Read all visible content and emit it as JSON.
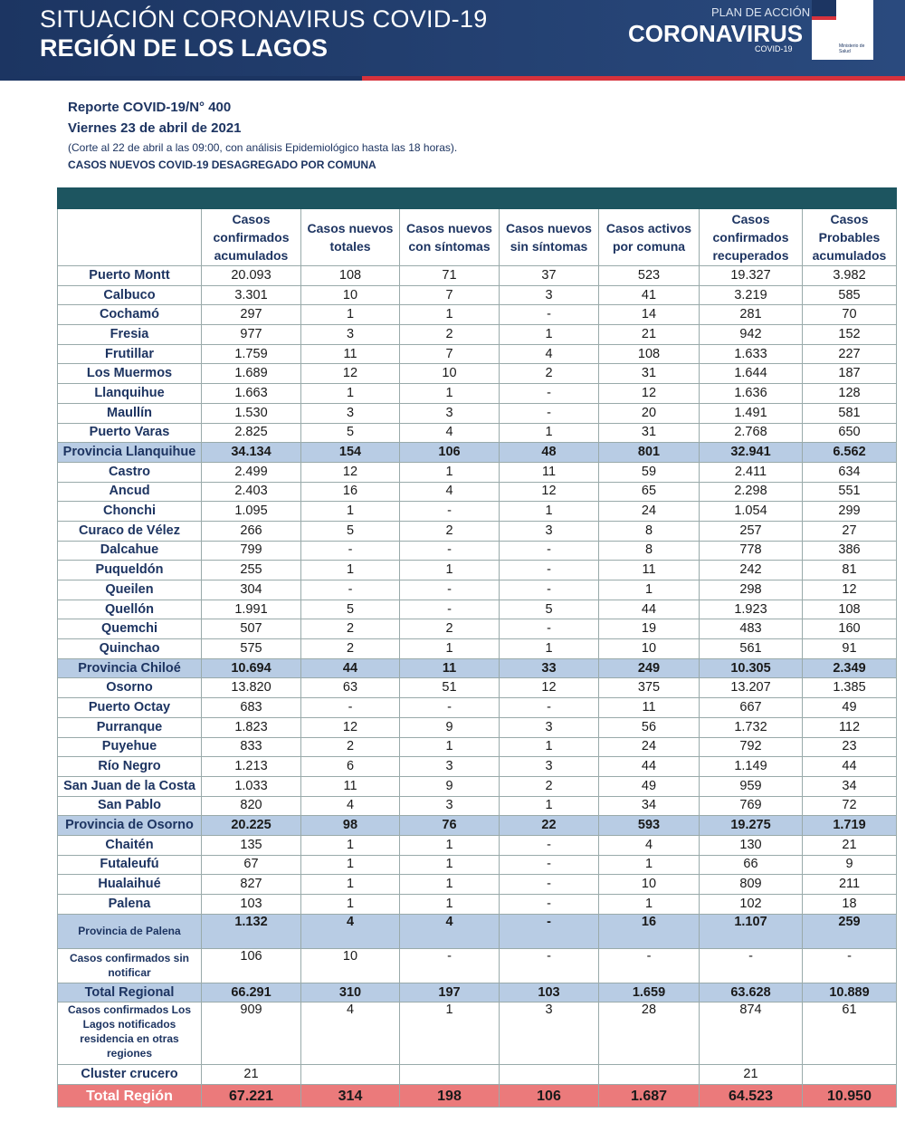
{
  "header": {
    "title": "SITUACIÓN CORONAVIRUS COVID-19",
    "subtitle": "REGIÓN DE LOS LAGOS",
    "logo_top": "PLAN DE ACCIÓN",
    "logo_main": "CORONAVIRUS",
    "logo_sub": "COVID-19",
    "gov_label": "Ministerio de Salud"
  },
  "report": {
    "number": "Reporte COVID-19/N° 400",
    "date": "Viernes 23 de abril de 2021",
    "note": "(Corte al 22 de abril a las 09:00, con análisis Epidemiológico hasta las 18 horas).",
    "heading": "CASOS NUEVOS COVID-19 DESAGREGADO POR COMUNA"
  },
  "table": {
    "columns": [
      null,
      "Casos confirmados acumulados",
      "Casos nuevos totales",
      "Casos nuevos con síntomas",
      "Casos nuevos sin síntomas",
      "Casos activos por comuna",
      "Casos confirmados recuperados",
      "Casos Probables acumulados"
    ],
    "rows": [
      [
        "Puerto Montt",
        "20.093",
        "108",
        "71",
        "37",
        "523",
        "19.327",
        "3.982"
      ],
      [
        "Calbuco",
        "3.301",
        "10",
        "7",
        "3",
        "41",
        "3.219",
        "585"
      ],
      [
        "Cochamó",
        "297",
        "1",
        "1",
        "-",
        "14",
        "281",
        "70"
      ],
      [
        "Fresia",
        "977",
        "3",
        "2",
        "1",
        "21",
        "942",
        "152"
      ],
      [
        "Frutillar",
        "1.759",
        "11",
        "7",
        "4",
        "108",
        "1.633",
        "227"
      ],
      [
        "Los Muermos",
        "1.689",
        "12",
        "10",
        "2",
        "31",
        "1.644",
        "187"
      ],
      [
        "Llanquihue",
        "1.663",
        "1",
        "1",
        "-",
        "12",
        "1.636",
        "128"
      ],
      [
        "Maullín",
        "1.530",
        "3",
        "3",
        "-",
        "20",
        "1.491",
        "581"
      ],
      [
        "Puerto Varas",
        "2.825",
        "5",
        "4",
        "1",
        "31",
        "2.768",
        "650"
      ],
      [
        "Provincia Llanquihue",
        "34.134",
        "154",
        "106",
        "48",
        "801",
        "32.941",
        "6.562"
      ],
      [
        "Castro",
        "2.499",
        "12",
        "1",
        "11",
        "59",
        "2.411",
        "634"
      ],
      [
        "Ancud",
        "2.403",
        "16",
        "4",
        "12",
        "65",
        "2.298",
        "551"
      ],
      [
        "Chonchi",
        "1.095",
        "1",
        "-",
        "1",
        "24",
        "1.054",
        "299"
      ],
      [
        "Curaco de Vélez",
        "266",
        "5",
        "2",
        "3",
        "8",
        "257",
        "27"
      ],
      [
        "Dalcahue",
        "799",
        "-",
        "-",
        "-",
        "8",
        "778",
        "386"
      ],
      [
        "Puqueldón",
        "255",
        "1",
        "1",
        "-",
        "11",
        "242",
        "81"
      ],
      [
        "Queilen",
        "304",
        "-",
        "-",
        "-",
        "1",
        "298",
        "12"
      ],
      [
        "Quellón",
        "1.991",
        "5",
        "-",
        "5",
        "44",
        "1.923",
        "108"
      ],
      [
        "Quemchi",
        "507",
        "2",
        "2",
        "-",
        "19",
        "483",
        "160"
      ],
      [
        "Quinchao",
        "575",
        "2",
        "1",
        "1",
        "10",
        "561",
        "91"
      ],
      [
        "Provincia Chiloé",
        "10.694",
        "44",
        "11",
        "33",
        "249",
        "10.305",
        "2.349"
      ],
      [
        "Osorno",
        "13.820",
        "63",
        "51",
        "12",
        "375",
        "13.207",
        "1.385"
      ],
      [
        "Puerto Octay",
        "683",
        "-",
        "-",
        "-",
        "11",
        "667",
        "49"
      ],
      [
        "Purranque",
        "1.823",
        "12",
        "9",
        "3",
        "56",
        "1.732",
        "112"
      ],
      [
        "Puyehue",
        "833",
        "2",
        "1",
        "1",
        "24",
        "792",
        "23"
      ],
      [
        "Río Negro",
        "1.213",
        "6",
        "3",
        "3",
        "44",
        "1.149",
        "44"
      ],
      [
        "San Juan de la Costa",
        "1.033",
        "11",
        "9",
        "2",
        "49",
        "959",
        "34"
      ],
      [
        "San Pablo",
        "820",
        "4",
        "3",
        "1",
        "34",
        "769",
        "72"
      ],
      [
        "Provincia de Osorno",
        "20.225",
        "98",
        "76",
        "22",
        "593",
        "19.275",
        "1.719"
      ],
      [
        "Chaitén",
        "135",
        "1",
        "1",
        "-",
        "4",
        "130",
        "21"
      ],
      [
        "Futaleufú",
        "67",
        "1",
        "1",
        "-",
        "1",
        "66",
        "9"
      ],
      [
        "Hualaihué",
        "827",
        "1",
        "1",
        "-",
        "10",
        "809",
        "211"
      ],
      [
        "Palena",
        "103",
        "1",
        "1",
        "-",
        "1",
        "102",
        "18"
      ],
      [
        "Provincia de Palena",
        "1.132",
        "4",
        "4",
        "-",
        "16",
        "1.107",
        "259"
      ],
      [
        "Casos confirmados sin notificar",
        "106",
        "10",
        "-",
        "-",
        "-",
        "-",
        "-"
      ],
      [
        "Total Regional",
        "66.291",
        "310",
        "197",
        "103",
        "1.659",
        "63.628",
        "10.889"
      ],
      [
        "Casos confirmados Los Lagos notificados residencia en otras regiones",
        "909",
        "4",
        "1",
        "3",
        "28",
        "874",
        "61"
      ],
      [
        "Cluster crucero",
        "21",
        null,
        null,
        null,
        null,
        "21",
        null
      ],
      [
        "Total Región",
        "67.221",
        "314",
        "198",
        "106",
        "1.687",
        "64.523",
        "10.950"
      ]
    ]
  }
}
